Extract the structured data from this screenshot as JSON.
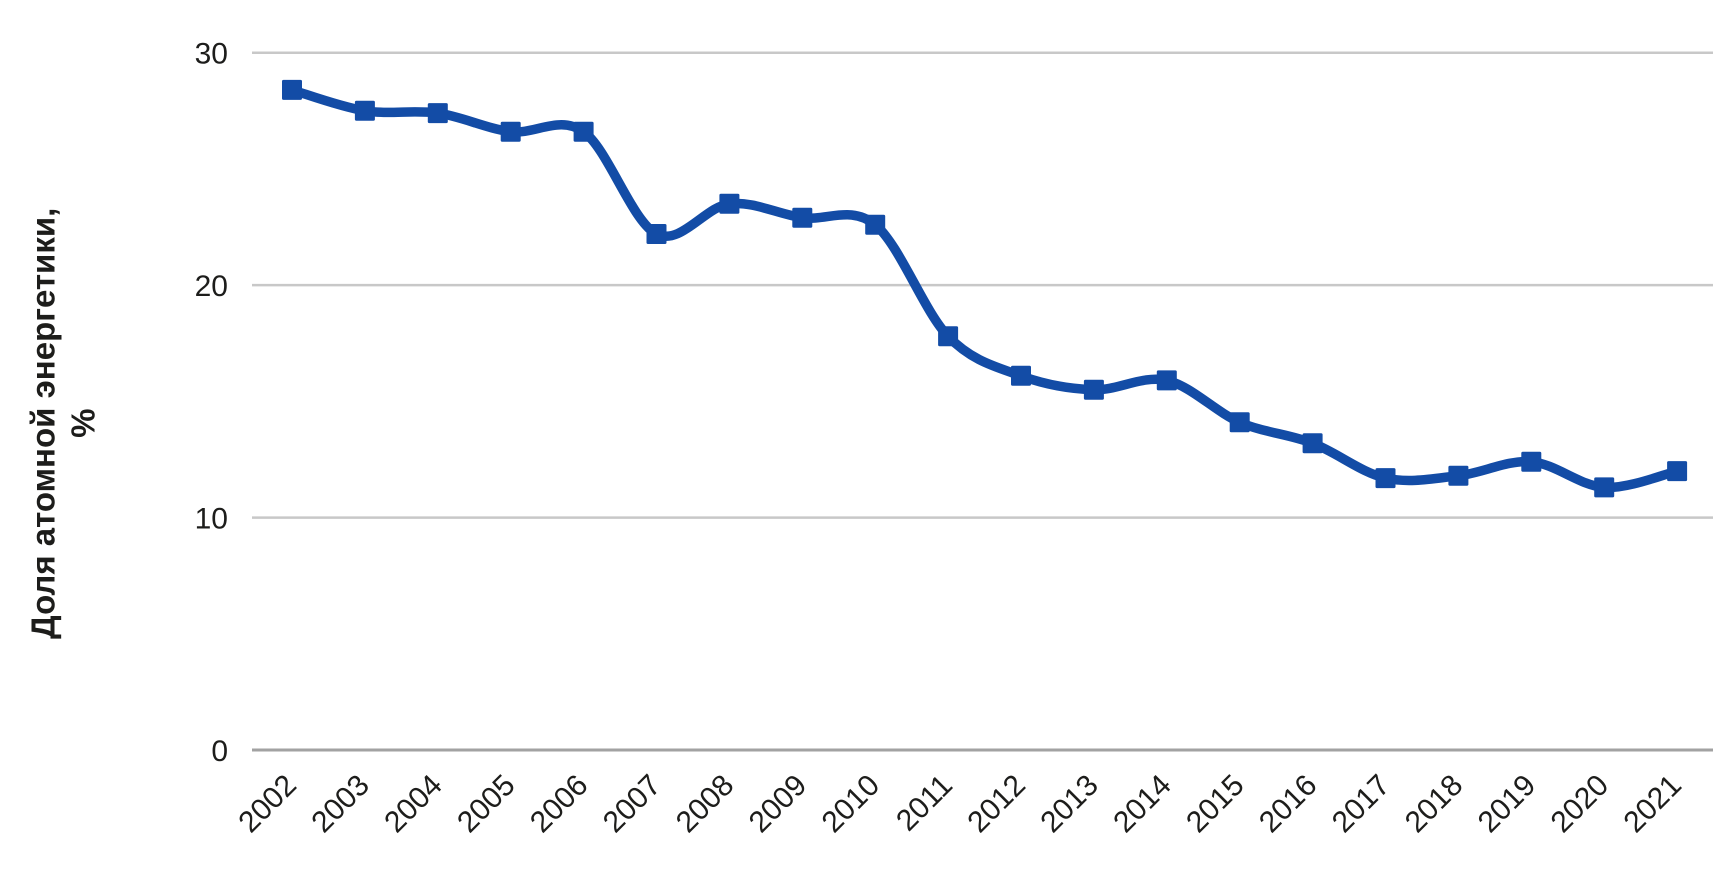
{
  "page": {
    "background": "#ffffff"
  },
  "chart_data": {
    "type": "line",
    "title": "",
    "xlabel": "",
    "ylabel": "Доля атомной энергетики, %",
    "ylabel_lines": [
      "Доля атомной энергетики,",
      "%"
    ],
    "categories": [
      "2002",
      "2003",
      "2004",
      "2005",
      "2006",
      "2007",
      "2008",
      "2009",
      "2010",
      "2011",
      "2012",
      "2013",
      "2014",
      "2015",
      "2016",
      "2017",
      "2018",
      "2019",
      "2020",
      "2021"
    ],
    "series": [
      {
        "name": "Доля атомной энергетики, %",
        "values": [
          28.4,
          27.5,
          27.4,
          26.6,
          26.6,
          22.2,
          23.5,
          22.9,
          22.6,
          17.8,
          16.1,
          15.5,
          15.9,
          14.1,
          13.2,
          11.7,
          11.8,
          12.4,
          11.3,
          12.0
        ],
        "color": "#134CA6",
        "marker": "square",
        "smoothed": true
      }
    ],
    "ylim": [
      0,
      30
    ],
    "yticks": [
      0,
      10,
      20,
      30
    ],
    "grid": "horizontal",
    "gridline_color": "#C8C8C8",
    "axisline_color": "#A2A2A2",
    "text_color": "#1D1D1B",
    "legend_position": "none",
    "x_tick_rotation": -45
  }
}
